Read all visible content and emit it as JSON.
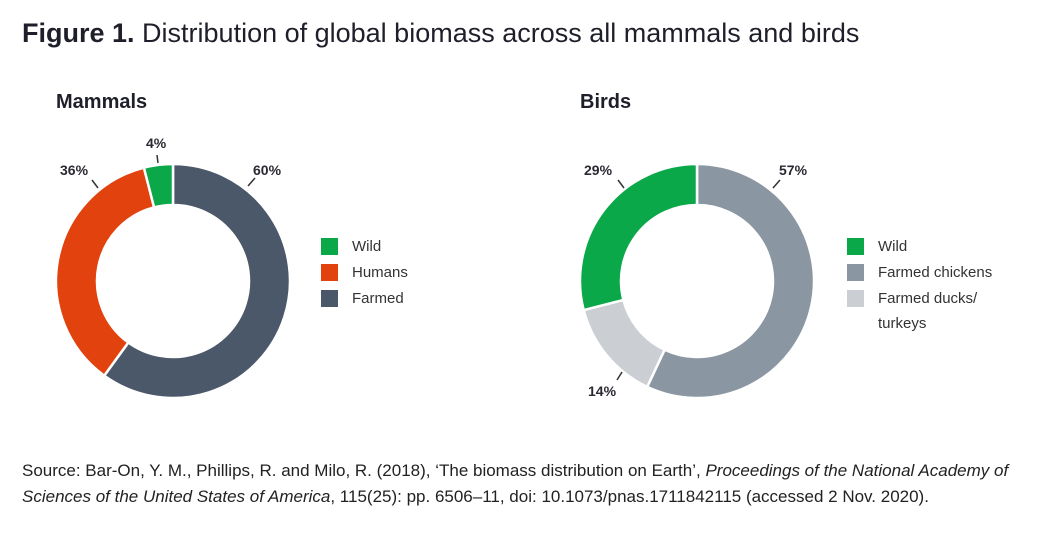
{
  "figure": {
    "label": "Figure 1.",
    "title": "Distribution of global biomass across all mammals and birds"
  },
  "chart_data": [
    {
      "type": "pie",
      "donut": true,
      "title": "Mammals",
      "order": "clockwise from top",
      "slices": [
        {
          "name": "Farmed",
          "value": 60,
          "label": "60%",
          "color": "#4b5869"
        },
        {
          "name": "Humans",
          "value": 36,
          "label": "36%",
          "color": "#e2420d"
        },
        {
          "name": "Wild",
          "value": 4,
          "label": "4%",
          "color": "#0ba84a"
        }
      ],
      "legend": [
        "Wild",
        "Humans",
        "Farmed"
      ],
      "legend_colors": [
        "#0ba84a",
        "#e2420d",
        "#4b5869"
      ],
      "legend_position": "right"
    },
    {
      "type": "pie",
      "donut": true,
      "title": "Birds",
      "order": "clockwise from top",
      "slices": [
        {
          "name": "Farmed chickens",
          "value": 57,
          "label": "57%",
          "color": "#8a96a1"
        },
        {
          "name": "Farmed ducks/ turkeys",
          "value": 14,
          "label": "14%",
          "color": "#cbcfd3"
        },
        {
          "name": "Wild",
          "value": 29,
          "label": "29%",
          "color": "#0ba84a"
        }
      ],
      "legend": [
        "Wild",
        "Farmed chickens",
        "Farmed ducks/ turkeys"
      ],
      "legend_colors": [
        "#0ba84a",
        "#8a96a1",
        "#cbcfd3"
      ],
      "legend_position": "right"
    }
  ],
  "source": {
    "prefix": "Source: Bar-On, Y. M., Phillips, R. and Milo, R. (2018), ‘The biomass distribution on Earth’, ",
    "journal": "Proceedings of the National Academy of Sciences of the United States of America",
    "suffix": ", 115(25): pp. 6506–11, doi: 10.1073/pnas.1711842115 (accessed 2 Nov. 2020)."
  }
}
